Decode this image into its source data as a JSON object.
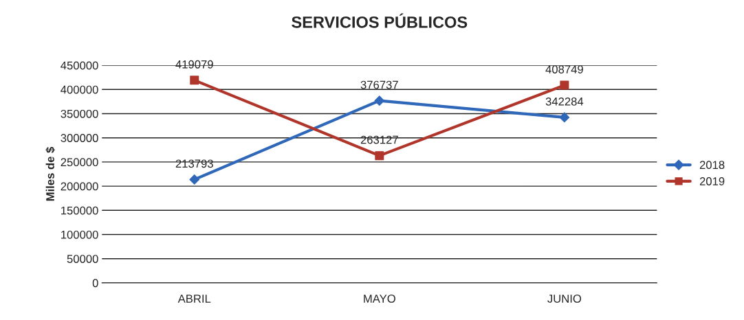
{
  "chart_data": {
    "type": "line",
    "title": "SERVICIOS PÚBLICOS",
    "ylabel": "Miles de $",
    "categories": [
      "ABRIL",
      "MAYO",
      "JUNIO"
    ],
    "series": [
      {
        "name": "2018",
        "color": "#2f67b9",
        "values": [
          213793,
          376737,
          342284
        ],
        "marker": "diamond"
      },
      {
        "name": "2019",
        "color": "#b0362c",
        "values": [
          419079,
          263127,
          408749
        ],
        "marker": "square"
      }
    ],
    "ylim": [
      0,
      450000
    ],
    "yticks": [
      0,
      50000,
      100000,
      150000,
      200000,
      250000,
      300000,
      350000,
      400000,
      450000
    ],
    "grid": "y",
    "legend": "right",
    "data_labels": true,
    "line_style": "solid"
  }
}
